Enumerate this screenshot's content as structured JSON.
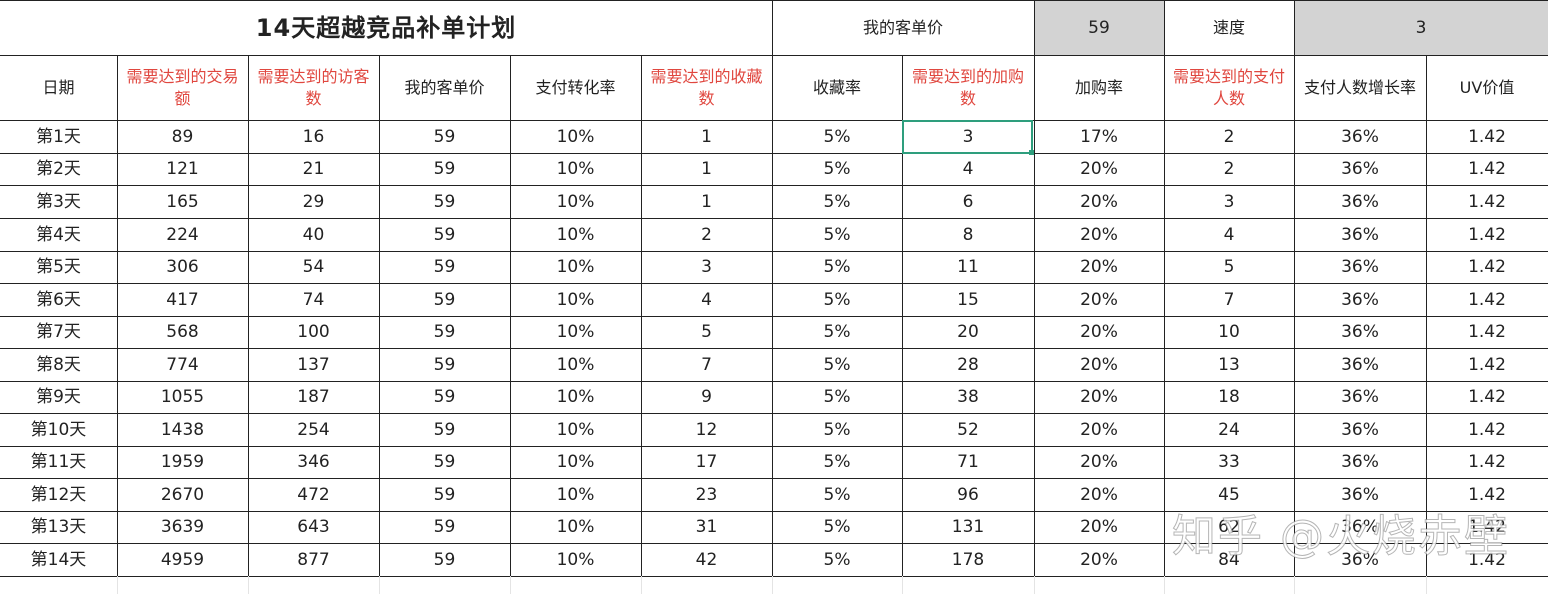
{
  "title": "14天超越竞品补单计划",
  "top": {
    "price_label": "我的客单价",
    "price_value": "59",
    "speed_label": "速度",
    "speed_value": "3"
  },
  "headers": [
    "日期",
    "需要达到的交易额",
    "需要达到的访客数",
    "我的客单价",
    "支付转化率",
    "需要达到的收藏数",
    "收藏率",
    "需要达到的加购数",
    "加购率",
    "需要达到的支付人数",
    "支付人数增长率",
    "UV价值"
  ],
  "highlight_color": "#e0473f",
  "selection_color": "#2e9e7d",
  "rows": [
    [
      "第1天",
      "89",
      "16",
      "59",
      "10%",
      "1",
      "5%",
      "3",
      "17%",
      "2",
      "36%",
      "1.42"
    ],
    [
      "第2天",
      "121",
      "21",
      "59",
      "10%",
      "1",
      "5%",
      "4",
      "20%",
      "2",
      "36%",
      "1.42"
    ],
    [
      "第3天",
      "165",
      "29",
      "59",
      "10%",
      "1",
      "5%",
      "6",
      "20%",
      "3",
      "36%",
      "1.42"
    ],
    [
      "第4天",
      "224",
      "40",
      "59",
      "10%",
      "2",
      "5%",
      "8",
      "20%",
      "4",
      "36%",
      "1.42"
    ],
    [
      "第5天",
      "306",
      "54",
      "59",
      "10%",
      "3",
      "5%",
      "11",
      "20%",
      "5",
      "36%",
      "1.42"
    ],
    [
      "第6天",
      "417",
      "74",
      "59",
      "10%",
      "4",
      "5%",
      "15",
      "20%",
      "7",
      "36%",
      "1.42"
    ],
    [
      "第7天",
      "568",
      "100",
      "59",
      "10%",
      "5",
      "5%",
      "20",
      "20%",
      "10",
      "36%",
      "1.42"
    ],
    [
      "第8天",
      "774",
      "137",
      "59",
      "10%",
      "7",
      "5%",
      "28",
      "20%",
      "13",
      "36%",
      "1.42"
    ],
    [
      "第9天",
      "1055",
      "187",
      "59",
      "10%",
      "9",
      "5%",
      "38",
      "20%",
      "18",
      "36%",
      "1.42"
    ],
    [
      "第10天",
      "1438",
      "254",
      "59",
      "10%",
      "12",
      "5%",
      "52",
      "20%",
      "24",
      "36%",
      "1.42"
    ],
    [
      "第11天",
      "1959",
      "346",
      "59",
      "10%",
      "17",
      "5%",
      "71",
      "20%",
      "33",
      "36%",
      "1.42"
    ],
    [
      "第12天",
      "2670",
      "472",
      "59",
      "10%",
      "23",
      "5%",
      "96",
      "20%",
      "45",
      "36%",
      "1.42"
    ],
    [
      "第13天",
      "3639",
      "643",
      "59",
      "10%",
      "31",
      "5%",
      "131",
      "20%",
      "62",
      "36%",
      "1.42"
    ],
    [
      "第14天",
      "4959",
      "877",
      "59",
      "10%",
      "42",
      "5%",
      "178",
      "20%",
      "84",
      "36%",
      "1.42"
    ]
  ],
  "watermark": "知乎 @火烧赤壁"
}
